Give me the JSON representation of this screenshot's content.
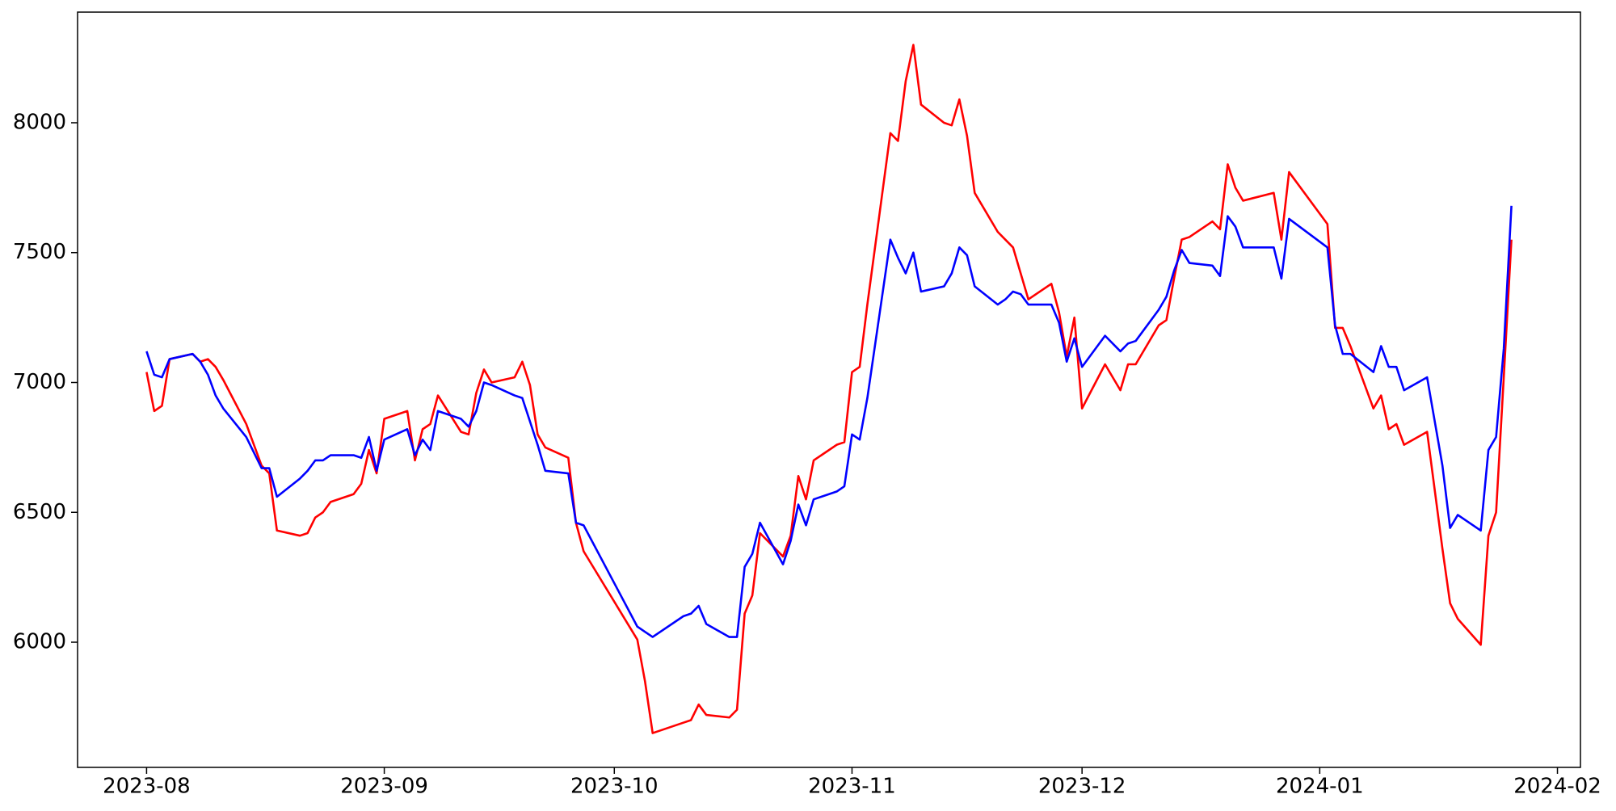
{
  "chart_data": {
    "type": "line",
    "x": [
      "2023-08-01",
      "2023-08-02",
      "2023-08-03",
      "2023-08-04",
      "2023-08-07",
      "2023-08-08",
      "2023-08-09",
      "2023-08-10",
      "2023-08-11",
      "2023-08-14",
      "2023-08-16",
      "2023-08-17",
      "2023-08-18",
      "2023-08-21",
      "2023-08-22",
      "2023-08-23",
      "2023-08-24",
      "2023-08-25",
      "2023-08-28",
      "2023-08-29",
      "2023-08-30",
      "2023-08-31",
      "2023-09-01",
      "2023-09-04",
      "2023-09-05",
      "2023-09-06",
      "2023-09-07",
      "2023-09-08",
      "2023-09-11",
      "2023-09-12",
      "2023-09-13",
      "2023-09-14",
      "2023-09-15",
      "2023-09-18",
      "2023-09-19",
      "2023-09-20",
      "2023-09-21",
      "2023-09-22",
      "2023-09-25",
      "2023-09-26",
      "2023-09-27",
      "2023-10-04",
      "2023-10-05",
      "2023-10-06",
      "2023-10-10",
      "2023-10-11",
      "2023-10-12",
      "2023-10-13",
      "2023-10-16",
      "2023-10-17",
      "2023-10-18",
      "2023-10-19",
      "2023-10-20",
      "2023-10-23",
      "2023-10-24",
      "2023-10-25",
      "2023-10-26",
      "2023-10-27",
      "2023-10-30",
      "2023-10-31",
      "2023-11-01",
      "2023-11-02",
      "2023-11-03",
      "2023-11-06",
      "2023-11-07",
      "2023-11-08",
      "2023-11-09",
      "2023-11-10",
      "2023-11-13",
      "2023-11-14",
      "2023-11-15",
      "2023-11-16",
      "2023-11-17",
      "2023-11-20",
      "2023-11-21",
      "2023-11-22",
      "2023-11-23",
      "2023-11-24",
      "2023-11-27",
      "2023-11-28",
      "2023-11-29",
      "2023-11-30",
      "2023-12-01",
      "2023-12-04",
      "2023-12-06",
      "2023-12-07",
      "2023-12-08",
      "2023-12-11",
      "2023-12-12",
      "2023-12-13",
      "2023-12-14",
      "2023-12-15",
      "2023-12-18",
      "2023-12-19",
      "2023-12-20",
      "2023-12-21",
      "2023-12-22",
      "2023-12-26",
      "2023-12-27",
      "2023-12-28",
      "2024-01-02",
      "2024-01-03",
      "2024-01-04",
      "2024-01-05",
      "2024-01-08",
      "2024-01-09",
      "2024-01-10",
      "2024-01-11",
      "2024-01-12",
      "2024-01-15",
      "2024-01-17",
      "2024-01-18",
      "2024-01-19",
      "2024-01-22",
      "2024-01-23",
      "2024-01-24",
      "2024-01-25",
      "2024-01-26"
    ],
    "series": [
      {
        "color": "#ff0000",
        "values": [
          7040,
          6890,
          6910,
          7090,
          7110,
          7080,
          7090,
          7060,
          7010,
          6840,
          6680,
          6650,
          6430,
          6410,
          6420,
          6480,
          6500,
          6540,
          6570,
          6610,
          6740,
          6650,
          6860,
          6890,
          6700,
          6820,
          6840,
          6950,
          6810,
          6800,
          6960,
          7050,
          7000,
          7020,
          7080,
          6990,
          6800,
          6750,
          6710,
          6460,
          6350,
          6010,
          5850,
          5650,
          5690,
          5700,
          5760,
          5720,
          5710,
          5740,
          6110,
          6180,
          6420,
          6330,
          6410,
          6640,
          6550,
          6700,
          6760,
          6770,
          7040,
          7060,
          7300,
          7960,
          7930,
          8160,
          8300,
          8070,
          8000,
          7990,
          8090,
          7950,
          7730,
          7580,
          7550,
          7520,
          7420,
          7320,
          7380,
          7270,
          7100,
          7250,
          6900,
          7070,
          6970,
          7070,
          7070,
          7220,
          7240,
          7400,
          7550,
          7560,
          7620,
          7590,
          7840,
          7750,
          7700,
          7730,
          7550,
          7810,
          7610,
          7210,
          7210,
          7140,
          6900,
          6950,
          6820,
          6840,
          6760,
          6810,
          6360,
          6150,
          6090,
          5990,
          6410,
          6500,
          7020,
          7550
        ]
      },
      {
        "color": "#0000ff",
        "values": [
          7120,
          7030,
          7020,
          7090,
          7110,
          7080,
          7030,
          6950,
          6900,
          6790,
          6670,
          6670,
          6560,
          6630,
          6660,
          6700,
          6700,
          6720,
          6720,
          6710,
          6790,
          6660,
          6780,
          6820,
          6720,
          6780,
          6740,
          6890,
          6860,
          6830,
          6890,
          7000,
          6990,
          6950,
          6940,
          6850,
          6760,
          6660,
          6650,
          6460,
          6450,
          6060,
          6040,
          6020,
          6100,
          6110,
          6140,
          6070,
          6020,
          6020,
          6290,
          6340,
          6460,
          6300,
          6390,
          6530,
          6450,
          6550,
          6580,
          6600,
          6800,
          6780,
          6940,
          7550,
          7480,
          7420,
          7500,
          7350,
          7370,
          7420,
          7520,
          7490,
          7370,
          7300,
          7320,
          7350,
          7340,
          7300,
          7300,
          7230,
          7080,
          7170,
          7060,
          7180,
          7120,
          7150,
          7160,
          7280,
          7330,
          7430,
          7510,
          7460,
          7450,
          7410,
          7640,
          7600,
          7520,
          7520,
          7400,
          7630,
          7520,
          7220,
          7110,
          7110,
          7040,
          7140,
          7060,
          7060,
          6970,
          7020,
          6680,
          6440,
          6490,
          6430,
          6740,
          6790,
          7130,
          7680
        ]
      }
    ],
    "xlim": [
      "2023-07-23",
      "2024-02-04"
    ],
    "xticks": [
      {
        "value": "2023-08-01",
        "label": "2023-08"
      },
      {
        "value": "2023-09-01",
        "label": "2023-09"
      },
      {
        "value": "2023-10-01",
        "label": "2023-10"
      },
      {
        "value": "2023-11-01",
        "label": "2023-11"
      },
      {
        "value": "2023-12-01",
        "label": "2023-12"
      },
      {
        "value": "2024-01-01",
        "label": "2024-01"
      },
      {
        "value": "2024-02-01",
        "label": "2024-02"
      }
    ],
    "ylim": [
      5518,
      8426
    ],
    "yticks": [
      6000,
      6500,
      7000,
      7500,
      8000
    ],
    "grid": false
  }
}
